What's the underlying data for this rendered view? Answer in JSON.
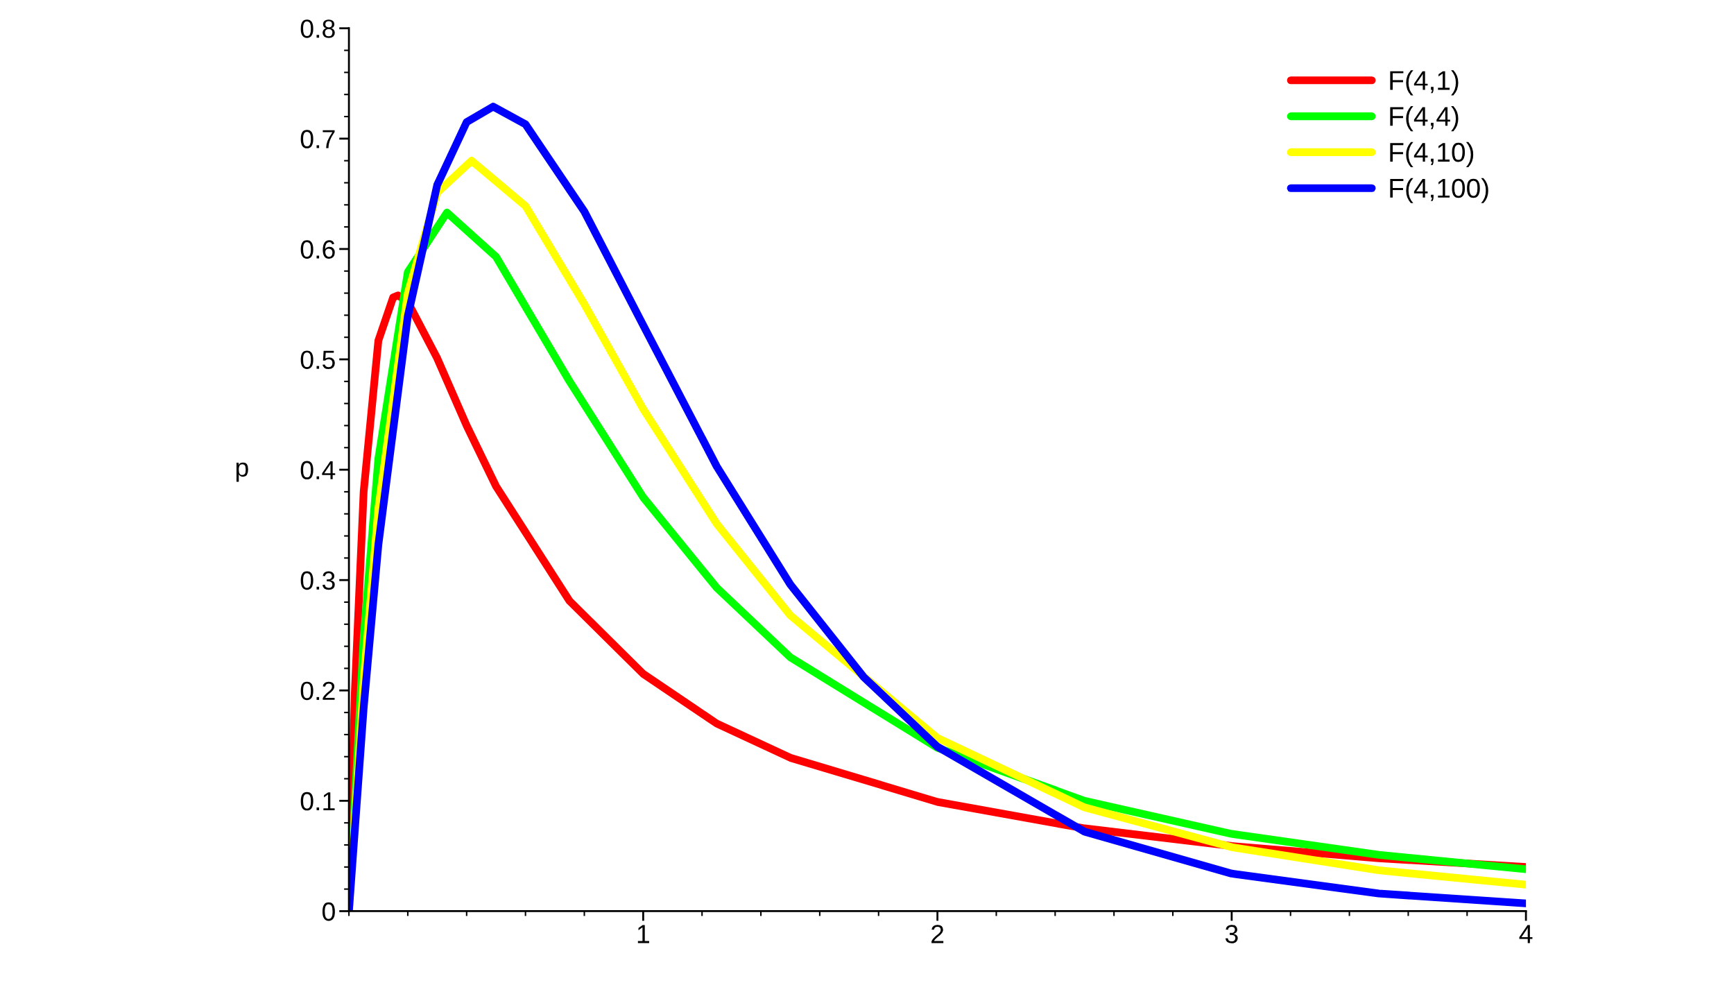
{
  "chart_data": {
    "type": "line",
    "ylabel": "p",
    "xlim": [
      0,
      4
    ],
    "ylim": [
      0,
      0.8
    ],
    "xticks": [
      1,
      2,
      3,
      4
    ],
    "yticks": [
      0,
      0.1,
      0.2,
      0.3,
      0.4,
      0.5,
      0.6,
      0.7,
      0.8
    ],
    "grid": false,
    "legend": "top right",
    "marker": "none",
    "line_style": "solid",
    "series": [
      {
        "name": "F(4,1)",
        "color": "#ff0000",
        "x": [
          0,
          0.02,
          0.05,
          0.1,
          0.15,
          0.167,
          0.2,
          0.3,
          0.4,
          0.5,
          0.75,
          1,
          1.25,
          1.5,
          2,
          2.5,
          3,
          3.5,
          4
        ],
        "values": [
          0,
          0.198,
          0.38,
          0.517,
          0.556,
          0.558,
          0.552,
          0.501,
          0.44,
          0.385,
          0.281,
          0.215,
          0.17,
          0.139,
          0.099,
          0.075,
          0.059,
          0.048,
          0.04
        ]
      },
      {
        "name": "F(4,4)",
        "color": "#00ff00",
        "x": [
          0,
          0.05,
          0.1,
          0.2,
          0.333,
          0.5,
          0.75,
          1,
          1.25,
          1.5,
          2,
          2.5,
          3,
          3.5,
          4
        ],
        "values": [
          0,
          0.247,
          0.41,
          0.579,
          0.633,
          0.593,
          0.48,
          0.375,
          0.293,
          0.23,
          0.148,
          0.1,
          0.07,
          0.051,
          0.038
        ]
      },
      {
        "name": "F(4,10)",
        "color": "#ffff00",
        "x": [
          0,
          0.05,
          0.1,
          0.2,
          0.3,
          0.417,
          0.6,
          0.8,
          1,
          1.25,
          1.5,
          2,
          2.5,
          3,
          3.5,
          4
        ],
        "values": [
          0,
          0.209,
          0.365,
          0.56,
          0.651,
          0.68,
          0.639,
          0.55,
          0.455,
          0.351,
          0.268,
          0.157,
          0.094,
          0.058,
          0.037,
          0.024
        ]
      },
      {
        "name": "F(4,100)",
        "color": "#0000ff",
        "x": [
          0,
          0.05,
          0.1,
          0.2,
          0.3,
          0.4,
          0.49,
          0.6,
          0.8,
          1,
          1.25,
          1.5,
          1.75,
          2,
          2.5,
          3,
          3.5,
          4
        ],
        "values": [
          0,
          0.184,
          0.332,
          0.539,
          0.658,
          0.715,
          0.729,
          0.713,
          0.634,
          0.531,
          0.403,
          0.296,
          0.212,
          0.149,
          0.072,
          0.034,
          0.016,
          0.007
        ]
      }
    ]
  }
}
